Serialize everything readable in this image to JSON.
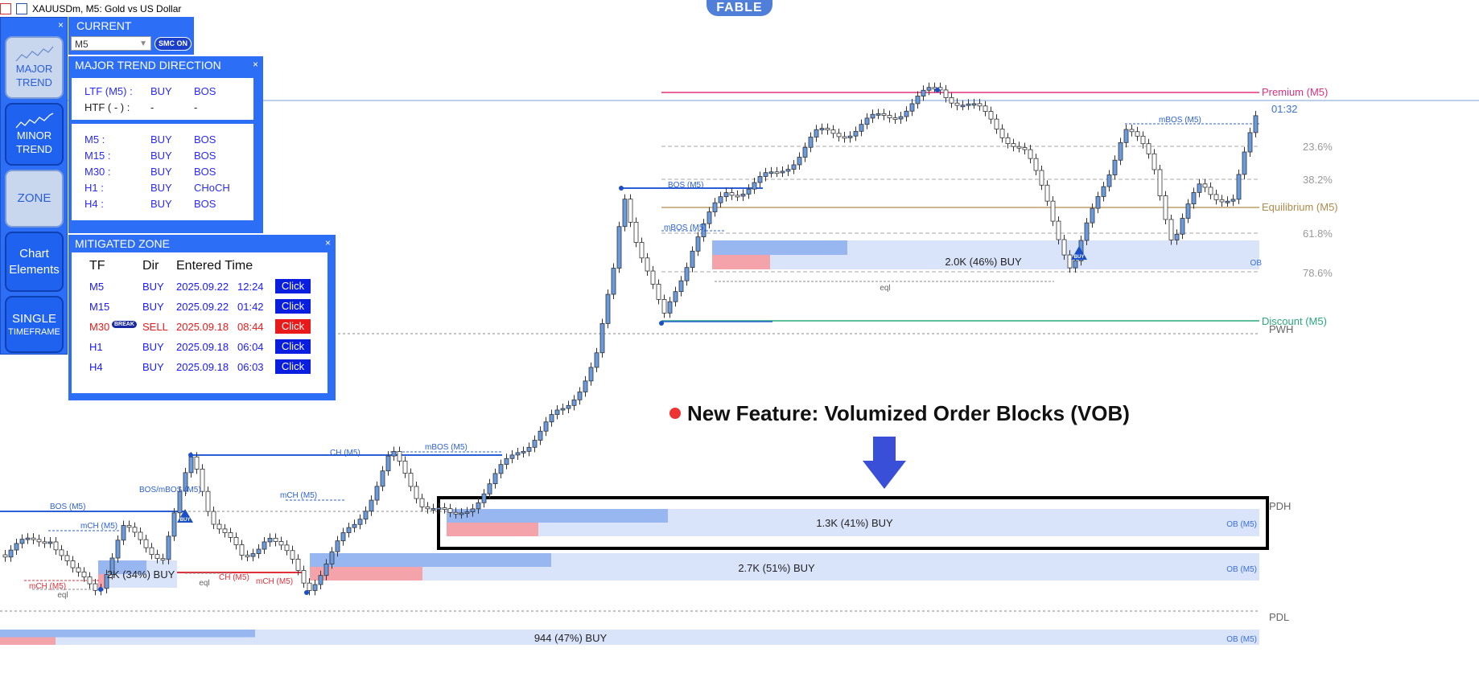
{
  "window": {
    "title": "XAUUSDm, M5:  Gold vs US Dollar",
    "badge": "FABLE"
  },
  "toolbar": {
    "close": "×",
    "buttons": [
      {
        "line1": "MAJOR",
        "line2": "TREND",
        "state": "active"
      },
      {
        "line1": "MINOR",
        "line2": "TREND",
        "state": "normal"
      },
      {
        "line1": "ZONE",
        "line2": "",
        "state": "active"
      },
      {
        "line1": "Chart",
        "line2": "Elements",
        "state": "normal"
      },
      {
        "line1": "SINGLE",
        "line2": "TIMEFRAME",
        "state": "normal"
      }
    ]
  },
  "current_panel": {
    "label": "CURRENT",
    "timeframe": "M5",
    "smc_button": "SMC ON"
  },
  "trend_panel": {
    "title": "MAJOR TREND DIRECTION",
    "close": "×",
    "top_rows": [
      {
        "tf": "LTF (M5) :",
        "dir": "BUY",
        "type": "BOS"
      },
      {
        "tf": "HTF ( - ) :",
        "dir": "-",
        "type": "-"
      }
    ],
    "rows": [
      {
        "tf": "M5 :",
        "dir": "BUY",
        "type": "BOS"
      },
      {
        "tf": "M15 :",
        "dir": "BUY",
        "type": "BOS"
      },
      {
        "tf": "M30 :",
        "dir": "BUY",
        "type": "BOS"
      },
      {
        "tf": "H1 :",
        "dir": "BUY",
        "type": "CHoCH"
      },
      {
        "tf": "H4 :",
        "dir": "BUY",
        "type": "BOS"
      }
    ]
  },
  "mitigated_panel": {
    "title": "MITIGATED ZONE",
    "close": "×",
    "headers": [
      "TF",
      "Dir",
      "Entered Time"
    ],
    "rows": [
      {
        "tf": "M5",
        "dir": "BUY",
        "date": "2025.09.22",
        "time": "12:24",
        "action": "Click",
        "badge": "",
        "color": "#1a1aff",
        "btn_color": "#0a1ee0"
      },
      {
        "tf": "M15",
        "dir": "BUY",
        "date": "2025.09.22",
        "time": "01:42",
        "action": "Click",
        "badge": "",
        "color": "#1a1aff",
        "btn_color": "#0a1ee0"
      },
      {
        "tf": "M30",
        "dir": "SELL",
        "date": "2025.09.18",
        "time": "08:44",
        "action": "Click",
        "badge": "BREAK",
        "color": "#e81a1a",
        "btn_color": "#e81a1a"
      },
      {
        "tf": "H1",
        "dir": "BUY",
        "date": "2025.09.18",
        "time": "06:04",
        "action": "Click",
        "badge": "",
        "color": "#1a1aff",
        "btn_color": "#0a1ee0"
      },
      {
        "tf": "H4",
        "dir": "BUY",
        "date": "2025.09.18",
        "time": "06:03",
        "action": "Click",
        "badge": "",
        "color": "#1a1aff",
        "btn_color": "#0a1ee0"
      }
    ]
  },
  "feature_banner": "New Feature: Volumized Order Blocks (VOB)",
  "chart": {
    "countdown": "01:32",
    "fib_levels": [
      {
        "label": "Premium (M5)",
        "color": "#e0307a"
      },
      {
        "label": "23.6%",
        "color": "#999999"
      },
      {
        "label": "38.2%",
        "color": "#999999"
      },
      {
        "label": "Equilibrium (M5)",
        "color": "#b08a4a"
      },
      {
        "label": "61.8%",
        "color": "#999999"
      },
      {
        "label": "78.6%",
        "color": "#999999"
      },
      {
        "label": "Discount (M5)",
        "color": "#2aa87a"
      }
    ],
    "levels": [
      "PWH",
      "PDH",
      "PDL"
    ],
    "order_blocks": [
      {
        "volume": "2.0K (46%) BUY",
        "tag": "OB"
      },
      {
        "volume": "1.3K (41%) BUY",
        "tag": "OB (M5)"
      },
      {
        "volume": "2.7K (51%) BUY",
        "tag": "OB (M5)"
      },
      {
        "volume": "944 (47%) BUY",
        "tag": "OB (M5)"
      },
      {
        "volume": "2K (34%) BUY",
        "tag": ""
      }
    ],
    "structure_labels": [
      {
        "text": "BOS (M5)",
        "color": "#2a5fd8"
      },
      {
        "text": "mBOS (M5)",
        "color": "#2a5fd8"
      },
      {
        "text": "mBOS (M5)",
        "color": "#2a5fd8"
      },
      {
        "text": "mBOS (M5)",
        "color": "#2a5fd8"
      },
      {
        "text": "CH (M5)",
        "color": "#2a5fd8"
      },
      {
        "text": "mCH (M5)",
        "color": "#2a5fd8"
      },
      {
        "text": "BOS/mBOS (M5)",
        "color": "#2a5fd8"
      },
      {
        "text": "BOS (M5)",
        "color": "#2a5fd8"
      },
      {
        "text": "mCH (M5)",
        "color": "#2a5fd8"
      },
      {
        "text": "CH (M5)",
        "color": "#e0303a"
      },
      {
        "text": "mCH (M5)",
        "color": "#e0303a"
      },
      {
        "text": "mCH (M5)",
        "color": "#e0303a"
      }
    ],
    "eql_labels": [
      "eql",
      "eql",
      "eql"
    ],
    "buy_markers": [
      "BUY",
      "BUY"
    ]
  }
}
